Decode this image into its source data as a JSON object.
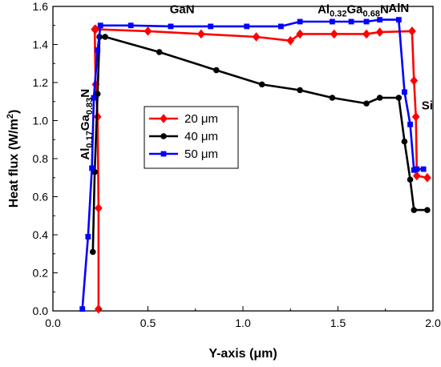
{
  "chart_data": {
    "type": "line",
    "xlabel": "Y-axis (μm)",
    "ylabel": {
      "main": "Heat flux (W/m",
      "sup": "2",
      "close": ")"
    },
    "xlim": [
      0.0,
      2.0
    ],
    "ylim": [
      0.0,
      1.6
    ],
    "xticks": [
      "0.0",
      "0.5",
      "1.0",
      "1.5",
      "2.0"
    ],
    "yticks": [
      "0.0",
      "0.2",
      "0.4",
      "0.6",
      "0.8",
      "1.0",
      "1.2",
      "1.4",
      "1.6"
    ],
    "legend_position": "center-left",
    "series": [
      {
        "name": "20 μm",
        "color": "#ff0000",
        "marker": "diamond",
        "x": [
          0.24,
          0.24,
          0.235,
          0.225,
          0.22,
          0.225,
          0.5,
          0.78,
          1.07,
          1.25,
          1.3,
          1.48,
          1.65,
          1.72,
          1.89,
          1.9,
          1.91,
          1.915,
          1.97
        ],
        "y": [
          0.01,
          0.54,
          1.02,
          1.19,
          1.48,
          1.48,
          1.47,
          1.455,
          1.44,
          1.42,
          1.455,
          1.455,
          1.455,
          1.465,
          1.47,
          1.21,
          1.02,
          0.71,
          0.7
        ]
      },
      {
        "name": "40 μm",
        "color": "#000000",
        "marker": "circle",
        "x": [
          0.21,
          0.22,
          0.235,
          0.245,
          0.275,
          0.56,
          0.86,
          1.1,
          1.3,
          1.47,
          1.65,
          1.72,
          1.82,
          1.85,
          1.88,
          1.9,
          1.97
        ],
        "y": [
          0.31,
          0.73,
          1.14,
          1.44,
          1.44,
          1.36,
          1.265,
          1.19,
          1.16,
          1.12,
          1.09,
          1.12,
          1.12,
          0.89,
          0.69,
          0.53,
          0.53
        ]
      },
      {
        "name": "50 μm",
        "color": "#0000ff",
        "marker": "square",
        "x": [
          0.155,
          0.185,
          0.205,
          0.215,
          0.235,
          0.25,
          0.41,
          0.62,
          0.83,
          1.02,
          1.2,
          1.3,
          1.47,
          1.57,
          1.65,
          1.72,
          1.82,
          1.85,
          1.88,
          1.9,
          1.915,
          1.95
        ],
        "y": [
          0.01,
          0.39,
          0.75,
          1.12,
          1.37,
          1.5,
          1.5,
          1.495,
          1.495,
          1.495,
          1.495,
          1.52,
          1.52,
          1.52,
          1.52,
          1.53,
          1.53,
          1.15,
          0.98,
          0.74,
          0.745,
          0.745
        ]
      }
    ],
    "annotations": [
      {
        "id": "gan",
        "x": 0.68,
        "y": 1.565,
        "parts": [
          {
            "t": "GaN"
          }
        ]
      },
      {
        "id": "algan32",
        "x": 1.58,
        "y": 1.565,
        "parts": [
          {
            "t": "Al"
          },
          {
            "t": "0.32",
            "sub": true
          },
          {
            "t": "Ga"
          },
          {
            "t": "0.68",
            "sub": true
          },
          {
            "t": "N"
          }
        ]
      },
      {
        "id": "aln",
        "x": 1.82,
        "y": 1.57,
        "parts": [
          {
            "t": "AlN"
          }
        ]
      },
      {
        "id": "si",
        "x": 1.97,
        "y": 1.06,
        "parts": [
          {
            "t": "Si"
          }
        ]
      },
      {
        "id": "algan17",
        "x": 0.19,
        "y": 0.98,
        "rotate": -90,
        "parts": [
          {
            "t": "Al"
          },
          {
            "t": "0.17",
            "sub": true
          },
          {
            "t": "Ga"
          },
          {
            "t": "0.83",
            "sub": true
          },
          {
            "t": "N"
          }
        ]
      }
    ]
  }
}
